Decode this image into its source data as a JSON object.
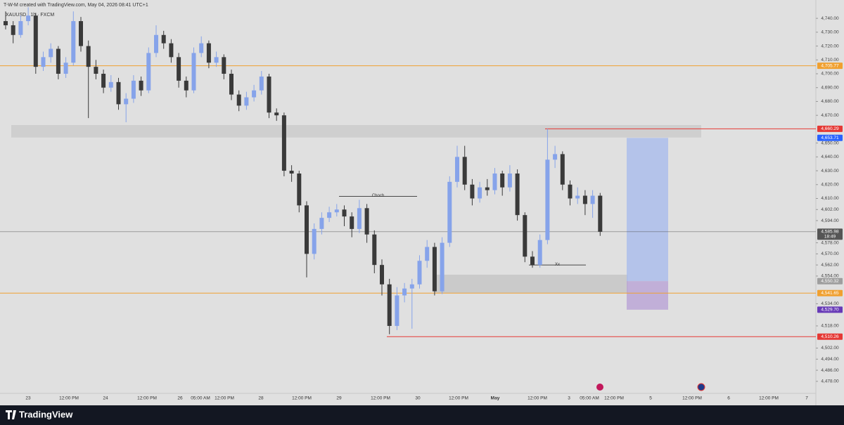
{
  "chart_data": {
    "type": "candlestick",
    "header": "T-W-M created with TradingView.com, May 04, 2026 08:41 UTC+1",
    "symbol": "XAUUSD · 1h · FXCM",
    "brand": "TradingView",
    "countdown": "18:49",
    "up_color": "#86a3ea",
    "down_color": "#3a3a3a",
    "ylim": [
      4469.3,
      4750.2
    ],
    "yticks": [
      {
        "value": 4740,
        "label": "4,740.00"
      },
      {
        "value": 4730,
        "label": "4,730.00"
      },
      {
        "value": 4720,
        "label": "4,720.00"
      },
      {
        "value": 4710,
        "label": "4,710.00"
      },
      {
        "value": 4700,
        "label": "4,700.00"
      },
      {
        "value": 4690,
        "label": "4,690.00"
      },
      {
        "value": 4680,
        "label": "4,680.00"
      },
      {
        "value": 4670,
        "label": "4,670.00"
      },
      {
        "value": 4650,
        "label": "4,650.00"
      },
      {
        "value": 4640,
        "label": "4,640.00"
      },
      {
        "value": 4630,
        "label": "4,630.00"
      },
      {
        "value": 4620,
        "label": "4,620.00"
      },
      {
        "value": 4610,
        "label": "4,610.00"
      },
      {
        "value": 4602,
        "label": "4,602.00"
      },
      {
        "value": 4594,
        "label": "4,594.00"
      },
      {
        "value": 4578,
        "label": "4,578.00"
      },
      {
        "value": 4570,
        "label": "4,570.00"
      },
      {
        "value": 4562,
        "label": "4,562.00"
      },
      {
        "value": 4554,
        "label": "4,554.00"
      },
      {
        "value": 4534,
        "label": "4,534.00"
      },
      {
        "value": 4518,
        "label": "4,518.00"
      },
      {
        "value": 4502,
        "label": "4,502.00"
      },
      {
        "value": 4494,
        "label": "4,494.00"
      },
      {
        "value": 4486,
        "label": "4,486.00"
      },
      {
        "value": 4478,
        "label": "4,478.00"
      }
    ],
    "xticks": [
      "23",
      "12:00 PM",
      "24",
      "12:00 PM",
      "26",
      "05:00 AM",
      "12:00 PM",
      "28",
      "12:00 PM",
      "29",
      "12:00 PM",
      "30",
      "12:00 PM",
      "May",
      "12:00 PM",
      "3",
      "05:00 AM",
      "12:00 PM",
      "5",
      "12:00 PM",
      "6",
      "12:00 PM",
      "7"
    ],
    "ohlc": [
      [
        4738,
        4745,
        4732,
        4735
      ],
      [
        4735,
        4738,
        4722,
        4728
      ],
      [
        4728,
        4742,
        4726,
        4738
      ],
      [
        4738,
        4748,
        4735,
        4742
      ],
      [
        4742,
        4744,
        4700,
        4705
      ],
      [
        4705,
        4716,
        4702,
        4712
      ],
      [
        4712,
        4722,
        4708,
        4718
      ],
      [
        4718,
        4720,
        4696,
        4700
      ],
      [
        4700,
        4712,
        4697,
        4708
      ],
      [
        4708,
        4745,
        4706,
        4738
      ],
      [
        4738,
        4741,
        4716,
        4720
      ],
      [
        4720,
        4724,
        4668,
        4705
      ],
      [
        4705,
        4710,
        4696,
        4700
      ],
      [
        4700,
        4703,
        4686,
        4690
      ],
      [
        4690,
        4699,
        4687,
        4694
      ],
      [
        4694,
        4697,
        4674,
        4678
      ],
      [
        4678,
        4686,
        4665,
        4682
      ],
      [
        4682,
        4699,
        4679,
        4695
      ],
      [
        4695,
        4698,
        4684,
        4688
      ],
      [
        4688,
        4719,
        4686,
        4715
      ],
      [
        4715,
        4735,
        4712,
        4728
      ],
      [
        4728,
        4731,
        4718,
        4722
      ],
      [
        4722,
        4725,
        4708,
        4712
      ],
      [
        4712,
        4715,
        4690,
        4695
      ],
      [
        4695,
        4698,
        4683,
        4688
      ],
      [
        4688,
        4719,
        4686,
        4715
      ],
      [
        4715,
        4727,
        4712,
        4722
      ],
      [
        4722,
        4724,
        4704,
        4708
      ],
      [
        4708,
        4716,
        4705,
        4712
      ],
      [
        4712,
        4714,
        4696,
        4700
      ],
      [
        4700,
        4703,
        4681,
        4685
      ],
      [
        4685,
        4688,
        4673,
        4677
      ],
      [
        4677,
        4687,
        4674,
        4683
      ],
      [
        4683,
        4692,
        4680,
        4688
      ],
      [
        4688,
        4702,
        4685,
        4698
      ],
      [
        4698,
        4700,
        4668,
        4672
      ],
      [
        4672,
        4675,
        4666,
        4670
      ],
      [
        4670,
        4672,
        4626,
        4630
      ],
      [
        4630,
        4634,
        4622,
        4628
      ],
      [
        4628,
        4630,
        4600,
        4605
      ],
      [
        4605,
        4608,
        4553,
        4570
      ],
      [
        4570,
        4592,
        4566,
        4588
      ],
      [
        4588,
        4600,
        4584,
        4596
      ],
      [
        4596,
        4604,
        4593,
        4600
      ],
      [
        4600,
        4606,
        4597,
        4602
      ],
      [
        4602,
        4605,
        4590,
        4597
      ],
      [
        4597,
        4600,
        4582,
        4588
      ],
      [
        4588,
        4609,
        4585,
        4603
      ],
      [
        4603,
        4606,
        4578,
        4584
      ],
      [
        4584,
        4587,
        4556,
        4562
      ],
      [
        4562,
        4566,
        4540,
        4548
      ],
      [
        4548,
        4552,
        4512,
        4518
      ],
      [
        4518,
        4546,
        4515,
        4540
      ],
      [
        4540,
        4549,
        4535,
        4545
      ],
      [
        4545,
        4552,
        4516,
        4548
      ],
      [
        4548,
        4569,
        4545,
        4565
      ],
      [
        4565,
        4580,
        4560,
        4575
      ],
      [
        4575,
        4578,
        4540,
        4543
      ],
      [
        4543,
        4582,
        4541,
        4578
      ],
      [
        4578,
        4626,
        4575,
        4622
      ],
      [
        4622,
        4648,
        4618,
        4640
      ],
      [
        4640,
        4648,
        4616,
        4620
      ],
      [
        4620,
        4624,
        4605,
        4610
      ],
      [
        4610,
        4622,
        4607,
        4618
      ],
      [
        4618,
        4624,
        4612,
        4616
      ],
      [
        4616,
        4632,
        4613,
        4628
      ],
      [
        4628,
        4630,
        4612,
        4618
      ],
      [
        4618,
        4634,
        4615,
        4628
      ],
      [
        4628,
        4631,
        4594,
        4598
      ],
      [
        4598,
        4600,
        4564,
        4568
      ],
      [
        4568,
        4572,
        4560,
        4562
      ],
      [
        4562,
        4584,
        4560,
        4580
      ],
      [
        4580,
        4660.29,
        4577,
        4638
      ],
      [
        4638,
        4648,
        4632,
        4642
      ],
      [
        4642,
        4644,
        4616,
        4620
      ],
      [
        4620,
        4623,
        4605,
        4610
      ],
      [
        4610,
        4618,
        4606,
        4612
      ],
      [
        4612,
        4616,
        4598,
        4606
      ],
      [
        4606,
        4616,
        4596,
        4612
      ],
      [
        4612,
        4614,
        4583,
        4585.98
      ]
    ],
    "price_labels": [
      {
        "value": 4705.77,
        "label": "4,705.77",
        "color": "#f0a030"
      },
      {
        "value": 4660.29,
        "label": "4,660.29",
        "color": "#e53935"
      },
      {
        "value": 4653.71,
        "label": "4,653.71",
        "color": "#2962ff"
      },
      {
        "value": 4585.98,
        "label": "4,585.98",
        "color": "#555555"
      },
      {
        "value": 4550.32,
        "label": "4,550.32",
        "color": "#9e9e9e"
      },
      {
        "value": 4541.65,
        "label": "4,541.65",
        "color": "#f0a030"
      },
      {
        "value": 4529.7,
        "label": "4,529.70",
        "color": "#673ab7"
      },
      {
        "value": 4510.26,
        "label": "4,510.26",
        "color": "#e53935"
      }
    ],
    "zones": [
      {
        "top": 4663,
        "bottom": 4654,
        "color": "#cbcbcb"
      },
      {
        "top": 4555,
        "bottom": 4541.65,
        "color": "#c5c5c5"
      }
    ],
    "position": {
      "target": 4653.71,
      "entry": 4550.32,
      "stop": 4529.7,
      "target_color": "#a9bcec",
      "stop_color": "#b9a3d6"
    },
    "annotations": [
      {
        "text": "Choch",
        "value": 4611.5
      },
      {
        "text": "Xx",
        "value": 4562
      }
    ]
  }
}
